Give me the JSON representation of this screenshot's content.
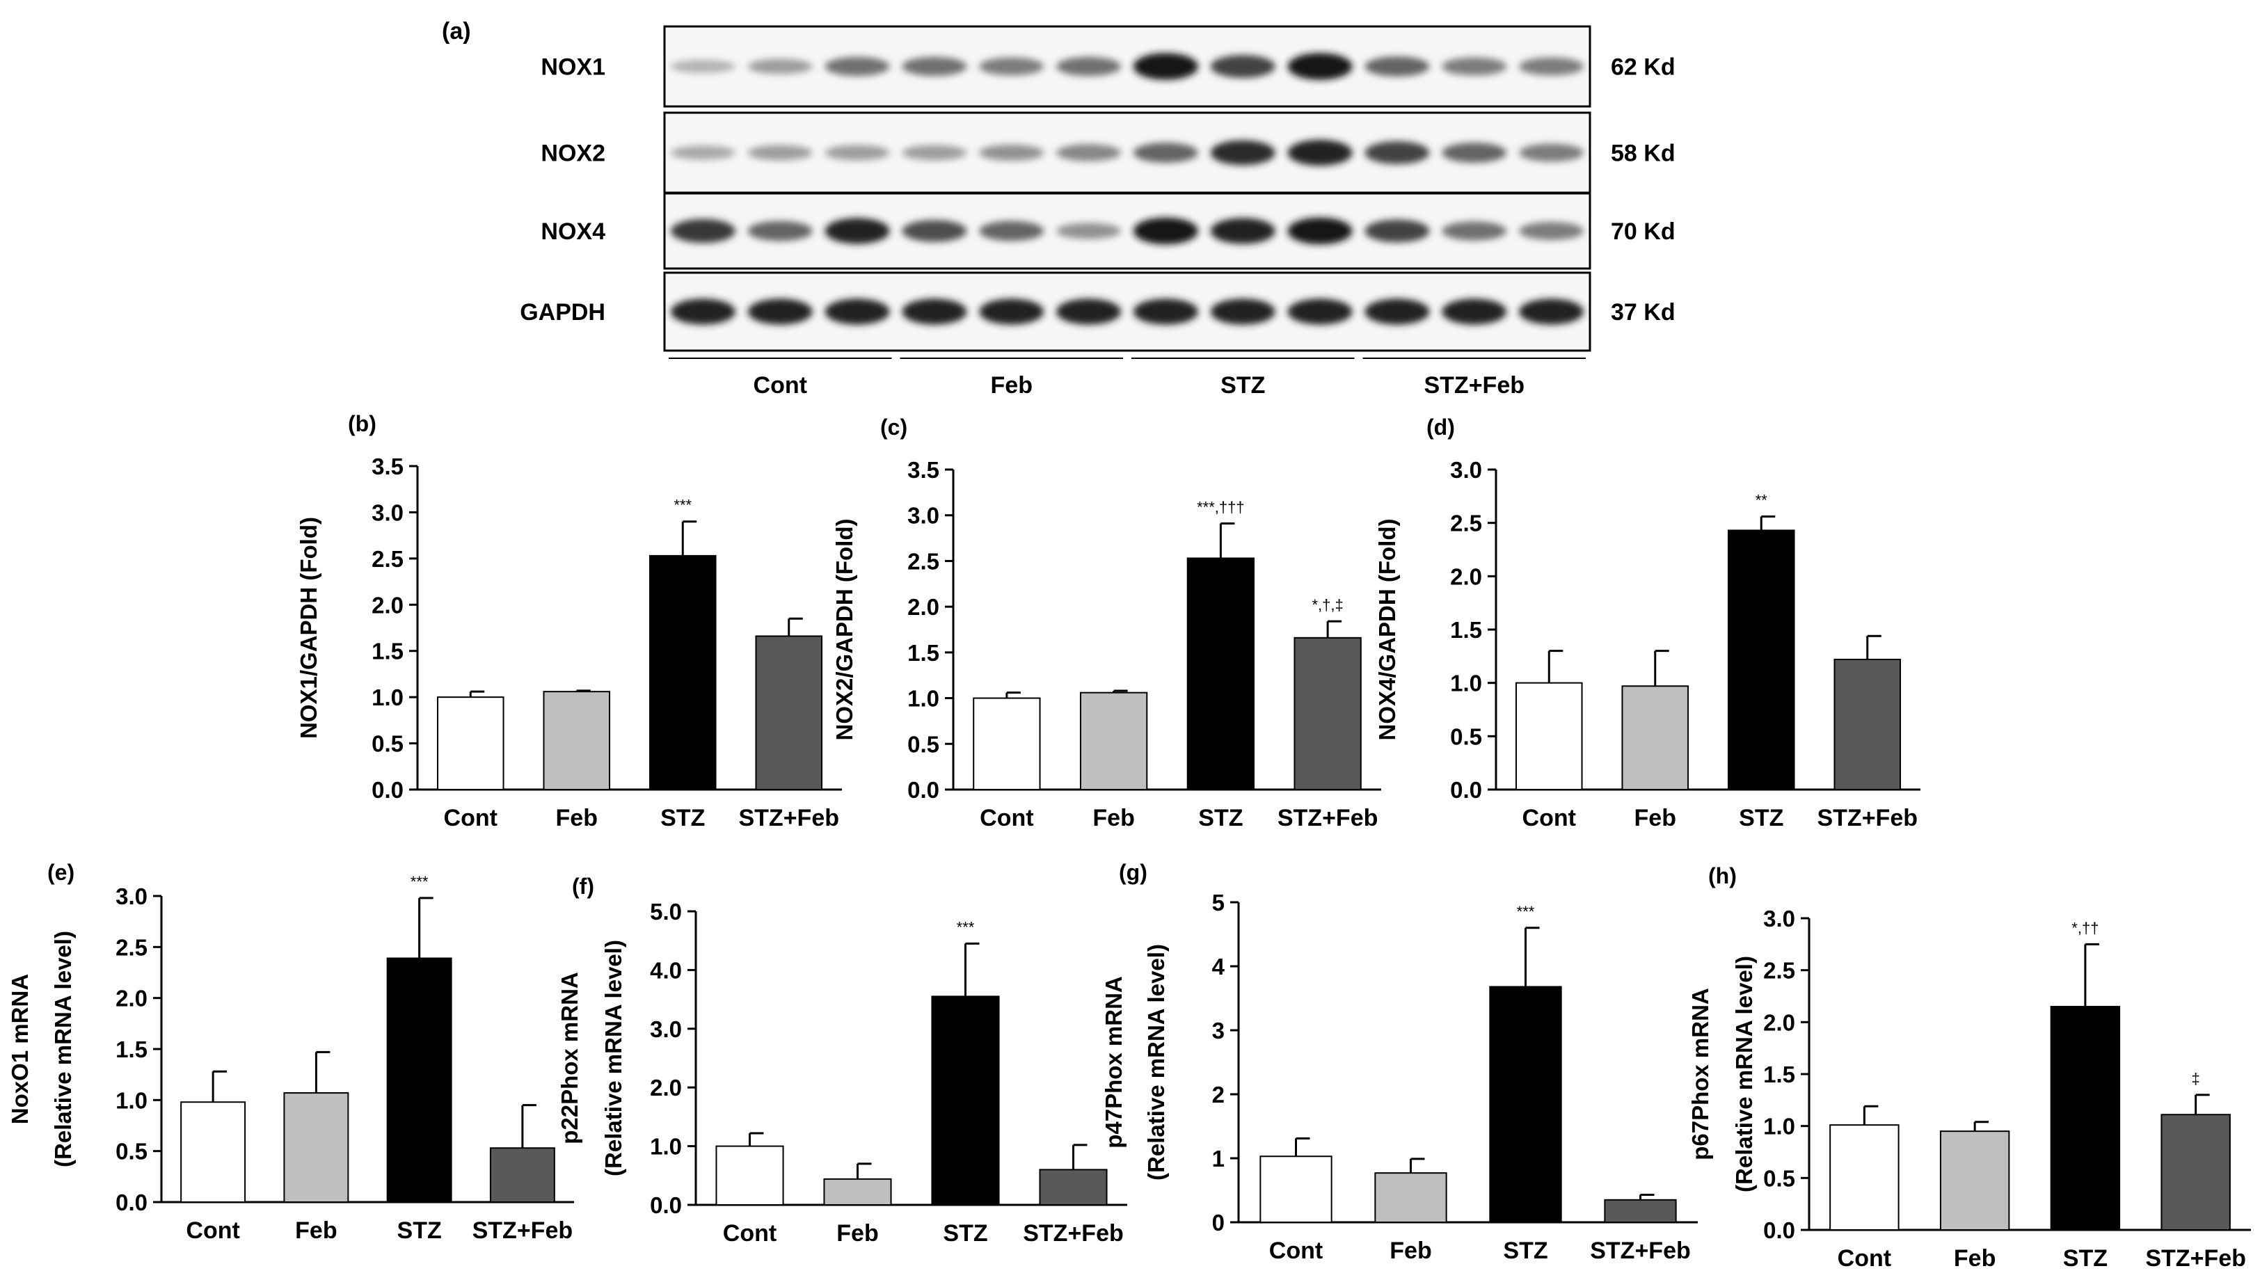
{
  "blot": {
    "panel_label": "(a)",
    "rows": [
      {
        "label": "NOX1",
        "kd": "62 Kd",
        "intensity": [
          0.25,
          0.35,
          0.55,
          0.55,
          0.5,
          0.55,
          0.95,
          0.75,
          0.95,
          0.6,
          0.5,
          0.5
        ]
      },
      {
        "label": "NOX2",
        "kd": "58 Kd",
        "intensity": [
          0.3,
          0.35,
          0.35,
          0.35,
          0.4,
          0.45,
          0.6,
          0.85,
          0.9,
          0.75,
          0.6,
          0.5
        ]
      },
      {
        "label": "NOX4",
        "kd": "70 Kd",
        "intensity": [
          0.8,
          0.6,
          0.9,
          0.7,
          0.6,
          0.4,
          0.95,
          0.9,
          0.95,
          0.75,
          0.55,
          0.5
        ]
      },
      {
        "label": "GAPDH",
        "kd": "37 Kd",
        "intensity": [
          0.9,
          0.9,
          0.9,
          0.9,
          0.9,
          0.9,
          0.9,
          0.9,
          0.9,
          0.9,
          0.9,
          0.9
        ]
      }
    ],
    "groups": [
      "Cont",
      "Feb",
      "STZ",
      "STZ+Feb"
    ]
  },
  "colors": {
    "Cont": "#ffffff",
    "Feb": "#bfbfbf",
    "STZ": "#000000",
    "STZ+Feb": "#595959"
  },
  "chart_data": [
    {
      "panel": "(b)",
      "type": "bar",
      "ylabel": [
        "NOX1/GAPDH (Fold)"
      ],
      "ylim": [
        0,
        3.5
      ],
      "ticks": [
        "0.0",
        "0.5",
        "1.0",
        "1.5",
        "2.0",
        "2.5",
        "3.0",
        "3.5"
      ],
      "categories": [
        "Cont",
        "Feb",
        "STZ",
        "STZ+Feb"
      ],
      "values": [
        1.0,
        1.06,
        2.53,
        1.66
      ],
      "errors": [
        0.06,
        0.01,
        0.37,
        0.19
      ],
      "annotations": [
        "",
        "",
        "***",
        ""
      ]
    },
    {
      "panel": "(c)",
      "type": "bar",
      "ylabel": [
        "NOX2/GAPDH (Fold)"
      ],
      "ylim": [
        0,
        3.5
      ],
      "ticks": [
        "0.0",
        "0.5",
        "1.0",
        "1.5",
        "2.0",
        "2.5",
        "3.0",
        "3.5"
      ],
      "categories": [
        "Cont",
        "Feb",
        "STZ",
        "STZ+Feb"
      ],
      "values": [
        1.0,
        1.06,
        2.53,
        1.66
      ],
      "errors": [
        0.06,
        0.02,
        0.38,
        0.18
      ],
      "annotations": [
        "",
        "",
        "***,†††",
        "*,†,‡"
      ]
    },
    {
      "panel": "(d)",
      "type": "bar",
      "ylabel": [
        "NOX4/GAPDH (Fold)"
      ],
      "ylim": [
        0,
        3.0
      ],
      "ticks": [
        "0.0",
        "0.5",
        "1.0",
        "1.5",
        "2.0",
        "2.5",
        "3.0"
      ],
      "categories": [
        "Cont",
        "Feb",
        "STZ",
        "STZ+Feb"
      ],
      "values": [
        1.0,
        0.97,
        2.43,
        1.22
      ],
      "errors": [
        0.3,
        0.33,
        0.13,
        0.22
      ],
      "annotations": [
        "",
        "",
        "**",
        ""
      ]
    },
    {
      "panel": "(e)",
      "type": "bar",
      "ylabel": [
        "NoxO1 mRNA",
        "(Relative mRNA level)"
      ],
      "ylim": [
        0,
        3.0
      ],
      "ticks": [
        "0.0",
        "0.5",
        "1.0",
        "1.5",
        "2.0",
        "2.5",
        "3.0"
      ],
      "categories": [
        "Cont",
        "Feb",
        "STZ",
        "STZ+Feb"
      ],
      "values": [
        0.98,
        1.07,
        2.39,
        0.53
      ],
      "errors": [
        0.3,
        0.4,
        0.59,
        0.42
      ],
      "annotations": [
        "",
        "",
        "***",
        ""
      ]
    },
    {
      "panel": "(f)",
      "type": "bar",
      "ylabel": [
        "p22Phox mRNA",
        "(Relative mRNA level)"
      ],
      "ylim": [
        0,
        5.0
      ],
      "ticks": [
        "0.0",
        "1.0",
        "2.0",
        "3.0",
        "4.0",
        "5.0"
      ],
      "categories": [
        "Cont",
        "Feb",
        "STZ",
        "STZ+Feb"
      ],
      "values": [
        1.0,
        0.44,
        3.55,
        0.6
      ],
      "errors": [
        0.22,
        0.26,
        0.9,
        0.42
      ],
      "annotations": [
        "",
        "",
        "***",
        ""
      ]
    },
    {
      "panel": "(g)",
      "type": "bar",
      "ylabel": [
        "p47Phox mRNA",
        "(Relative mRNA level)"
      ],
      "ylim": [
        0,
        5
      ],
      "ticks": [
        "0",
        "1",
        "2",
        "3",
        "4",
        "5"
      ],
      "categories": [
        "Cont",
        "Feb",
        "STZ",
        "STZ+Feb"
      ],
      "values": [
        1.03,
        0.77,
        3.68,
        0.35
      ],
      "errors": [
        0.28,
        0.22,
        0.92,
        0.08
      ],
      "annotations": [
        "",
        "",
        "***",
        ""
      ]
    },
    {
      "panel": "(h)",
      "type": "bar",
      "ylabel": [
        "p67Phox mRNA",
        "(Relative mRNA level)"
      ],
      "ylim": [
        0,
        3.0
      ],
      "ticks": [
        "0.0",
        "0.5",
        "1.0",
        "1.5",
        "2.0",
        "2.5",
        "3.0"
      ],
      "categories": [
        "Cont",
        "Feb",
        "STZ",
        "STZ+Feb"
      ],
      "values": [
        1.01,
        0.95,
        2.15,
        1.11
      ],
      "errors": [
        0.18,
        0.09,
        0.6,
        0.19
      ],
      "annotations": [
        "",
        "",
        "*,††",
        "‡"
      ]
    }
  ]
}
